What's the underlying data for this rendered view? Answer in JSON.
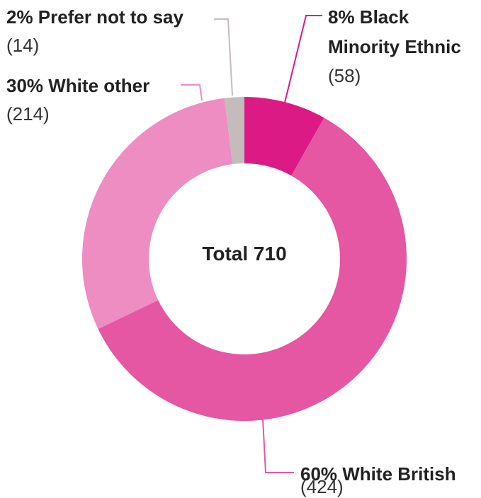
{
  "chart_data": {
    "type": "pie",
    "total": 710,
    "center_label": "Total 710",
    "slices": [
      {
        "name": "Black Minority Ethnic",
        "percent": 8,
        "count": 58,
        "label_lines": [
          "8% Black",
          "Minority Ethnic"
        ],
        "count_label": "(58)",
        "color": "#db1a85"
      },
      {
        "name": "White British",
        "percent": 60,
        "count": 424,
        "label_lines": [
          "60% White British"
        ],
        "count_label": "(424)",
        "color": "#e556a3"
      },
      {
        "name": "White other",
        "percent": 30,
        "count": 214,
        "label_lines": [
          "30% White other"
        ],
        "count_label": "(214)",
        "color": "#ed8dc2"
      },
      {
        "name": "Prefer not to say",
        "percent": 2,
        "count": 14,
        "label_lines": [
          "2% Prefer not to say"
        ],
        "count_label": "(14)",
        "color": "#c4bcba"
      }
    ]
  }
}
